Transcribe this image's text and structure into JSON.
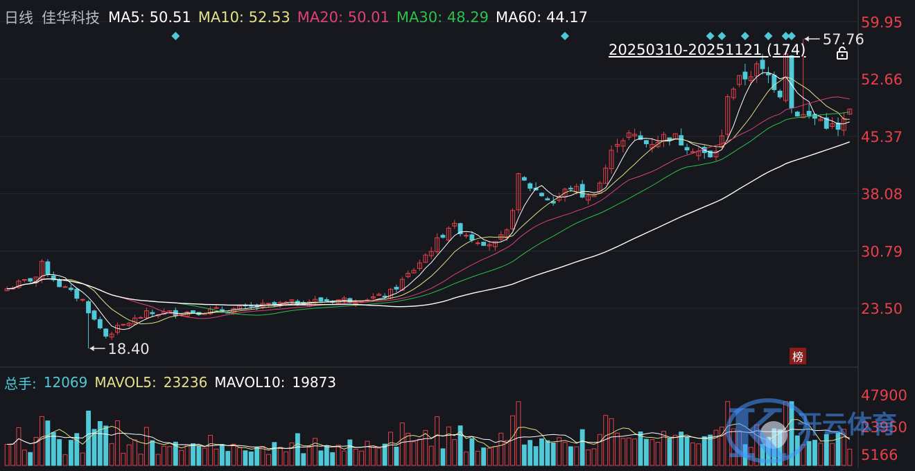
{
  "header": {
    "period": "日线",
    "stock_name": "佳华科技",
    "ma": [
      {
        "label": "MA5:",
        "value": "50.51",
        "color": "#ffffff"
      },
      {
        "label": "MA10:",
        "value": "52.53",
        "color": "#e3e08a"
      },
      {
        "label": "MA20:",
        "value": "50.01",
        "color": "#e0407a"
      },
      {
        "label": "MA30:",
        "value": "48.29",
        "color": "#2fbf4f"
      },
      {
        "label": "MA60:",
        "value": "44.17",
        "color": "#ffffff"
      }
    ]
  },
  "range_label": "20250310-20251121 (174)",
  "rank_badge": "榜",
  "watermark": {
    "letter": "K",
    "text": "开云体育"
  },
  "volume_header": {
    "label": "总手:",
    "value": "12069",
    "mavol5_label": "MAVOL5:",
    "mavol5_value": "23236",
    "mavol10_label": "MAVOL10:",
    "mavol10_value": "19873"
  },
  "chart_data": [
    {
      "type": "candlestick",
      "title": "佳华科技 日线",
      "ylim": [
        16.2,
        62.0
      ],
      "price_ticks": [
        "59.95",
        "52.66",
        "45.37",
        "38.08",
        "30.79",
        "23.50"
      ],
      "annotations": [
        {
          "label": "57.76",
          "bar_index": 164,
          "value": 57.76,
          "kind": "high"
        },
        {
          "label": "18.40",
          "bar_index": 17,
          "value": 18.4,
          "kind": "low"
        }
      ],
      "markers": [
        29,
        96,
        121,
        123,
        127,
        131,
        134,
        135
      ],
      "up_color": "#e8404a",
      "down_color": "#4fc9d8",
      "ma_colors": {
        "MA5": "#ffffff",
        "MA10": "#e3e08a",
        "MA20": "#e0407a",
        "MA30": "#2fbf4f",
        "MA60": "#ffffff"
      },
      "anchors": [
        [
          0,
          26.0
        ],
        [
          5,
          27.5
        ],
        [
          6,
          29.0
        ],
        [
          9,
          26.5
        ],
        [
          13,
          24.5
        ],
        [
          15,
          22.0
        ],
        [
          17,
          20.0
        ],
        [
          19,
          21.0
        ],
        [
          24,
          22.8
        ],
        [
          30,
          23.0
        ],
        [
          38,
          23.3
        ],
        [
          44,
          23.8
        ],
        [
          52,
          24.4
        ],
        [
          58,
          24.6
        ],
        [
          64,
          24.9
        ],
        [
          66,
          25.5
        ],
        [
          70,
          28.5
        ],
        [
          74,
          32.0
        ],
        [
          76,
          34.0
        ],
        [
          78,
          33.5
        ],
        [
          80,
          32.5
        ],
        [
          84,
          31.6
        ],
        [
          86,
          33.0
        ],
        [
          88,
          40.0
        ],
        [
          91,
          38.5
        ],
        [
          94,
          37.0
        ],
        [
          97,
          39.0
        ],
        [
          100,
          37.5
        ],
        [
          102,
          39.5
        ],
        [
          105,
          45.0
        ],
        [
          107,
          45.5
        ],
        [
          110,
          44.5
        ],
        [
          114,
          45.5
        ],
        [
          118,
          44.0
        ],
        [
          121,
          42.5
        ],
        [
          123,
          45.0
        ],
        [
          124,
          51.0
        ],
        [
          127,
          53.0
        ],
        [
          129,
          54.0
        ],
        [
          131,
          53.0
        ],
        [
          133,
          51.0
        ],
        [
          134,
          56.5
        ],
        [
          135,
          49.0
        ],
        [
          137,
          48.0
        ],
        [
          140,
          47.5
        ],
        [
          143,
          46.0
        ],
        [
          145,
          48.5
        ]
      ]
    },
    {
      "type": "bar",
      "title": "总手",
      "ylim": [
        0,
        52000
      ],
      "volume_ticks": [
        "47900",
        "23950",
        "5166"
      ],
      "last_value": 12069
    }
  ]
}
